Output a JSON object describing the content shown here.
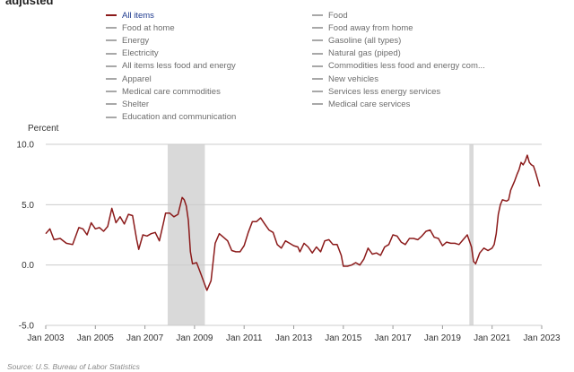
{
  "header": {
    "title": "adjusted"
  },
  "legend": {
    "items": [
      {
        "label": "All items",
        "active": true
      },
      {
        "label": "Food at home",
        "active": false
      },
      {
        "label": "Energy",
        "active": false
      },
      {
        "label": "Electricity",
        "active": false
      },
      {
        "label": "All items less food and energy",
        "active": false
      },
      {
        "label": "Apparel",
        "active": false
      },
      {
        "label": "Medical care commodities",
        "active": false
      },
      {
        "label": "Shelter",
        "active": false
      },
      {
        "label": "Education and communication",
        "active": false
      },
      {
        "label": "Food",
        "active": false
      },
      {
        "label": "Food away from home",
        "active": false
      },
      {
        "label": "Gasoline (all types)",
        "active": false
      },
      {
        "label": "Natural gas (piped)",
        "active": false
      },
      {
        "label": "Commodities less food and energy com...",
        "active": false
      },
      {
        "label": "New vehicles",
        "active": false
      },
      {
        "label": "Services less energy services",
        "active": false
      },
      {
        "label": "Medical care services",
        "active": false
      }
    ]
  },
  "source": "Source: U.S. Bureau of Labor Statistics",
  "colors": {
    "series": "#8b1a1a",
    "recession": "#d9d9d9",
    "grid": "#cccccc",
    "legend_active": "#1f3b8f",
    "legend_inactive": "#a8a8a8"
  },
  "chart_data": {
    "type": "line",
    "title": "",
    "xlabel": "",
    "ylabel": "Percent",
    "xlim": [
      "2003-01",
      "2023-01"
    ],
    "ylim": [
      -5.0,
      10.0
    ],
    "y_ticks": [
      "10.0",
      "5.0",
      "0.0",
      "-5.0"
    ],
    "x_ticks": [
      {
        "date": "2003-01",
        "label": "Jan 2003"
      },
      {
        "date": "2005-01",
        "label": "Jan 2005"
      },
      {
        "date": "2007-01",
        "label": "Jan 2007"
      },
      {
        "date": "2009-01",
        "label": "Jan 2009"
      },
      {
        "date": "2011-01",
        "label": "Jan 2011"
      },
      {
        "date": "2013-01",
        "label": "Jan 2013"
      },
      {
        "date": "2015-01",
        "label": "Jan 2015"
      },
      {
        "date": "2017-01",
        "label": "Jan 2017"
      },
      {
        "date": "2019-01",
        "label": "Jan 2019"
      },
      {
        "date": "2021-01",
        "label": "Jan 2021"
      },
      {
        "date": "2023-01",
        "label": "Jan 2023"
      }
    ],
    "grid": true,
    "shaded_periods": [
      {
        "start": "2007-12",
        "end": "2009-06"
      },
      {
        "start": "2020-02",
        "end": "2020-04"
      }
    ],
    "series": [
      {
        "name": "All items",
        "points": [
          [
            "2003-01",
            2.6
          ],
          [
            "2003-03",
            3.0
          ],
          [
            "2003-05",
            2.1
          ],
          [
            "2003-08",
            2.2
          ],
          [
            "2003-11",
            1.8
          ],
          [
            "2004-02",
            1.7
          ],
          [
            "2004-05",
            3.1
          ],
          [
            "2004-07",
            3.0
          ],
          [
            "2004-09",
            2.5
          ],
          [
            "2004-11",
            3.5
          ],
          [
            "2005-01",
            3.0
          ],
          [
            "2005-03",
            3.1
          ],
          [
            "2005-05",
            2.8
          ],
          [
            "2005-07",
            3.2
          ],
          [
            "2005-09",
            4.7
          ],
          [
            "2005-11",
            3.5
          ],
          [
            "2006-01",
            4.0
          ],
          [
            "2006-03",
            3.4
          ],
          [
            "2006-05",
            4.2
          ],
          [
            "2006-07",
            4.1
          ],
          [
            "2006-09",
            2.1
          ],
          [
            "2006-10",
            1.3
          ],
          [
            "2006-12",
            2.5
          ],
          [
            "2007-02",
            2.4
          ],
          [
            "2007-04",
            2.6
          ],
          [
            "2007-06",
            2.7
          ],
          [
            "2007-08",
            2.0
          ],
          [
            "2007-10",
            3.5
          ],
          [
            "2007-11",
            4.3
          ],
          [
            "2008-01",
            4.3
          ],
          [
            "2008-03",
            4.0
          ],
          [
            "2008-05",
            4.2
          ],
          [
            "2008-07",
            5.6
          ],
          [
            "2008-08",
            5.4
          ],
          [
            "2008-09",
            4.9
          ],
          [
            "2008-10",
            3.7
          ],
          [
            "2008-11",
            1.1
          ],
          [
            "2008-12",
            0.1
          ],
          [
            "2009-02",
            0.2
          ],
          [
            "2009-04",
            -0.7
          ],
          [
            "2009-07",
            -2.1
          ],
          [
            "2009-09",
            -1.3
          ],
          [
            "2009-11",
            1.8
          ],
          [
            "2010-01",
            2.6
          ],
          [
            "2010-03",
            2.3
          ],
          [
            "2010-05",
            2.0
          ],
          [
            "2010-07",
            1.2
          ],
          [
            "2010-09",
            1.1
          ],
          [
            "2010-11",
            1.1
          ],
          [
            "2011-01",
            1.6
          ],
          [
            "2011-03",
            2.7
          ],
          [
            "2011-05",
            3.6
          ],
          [
            "2011-07",
            3.6
          ],
          [
            "2011-09",
            3.9
          ],
          [
            "2011-11",
            3.4
          ],
          [
            "2012-01",
            2.9
          ],
          [
            "2012-03",
            2.7
          ],
          [
            "2012-05",
            1.7
          ],
          [
            "2012-07",
            1.4
          ],
          [
            "2012-09",
            2.0
          ],
          [
            "2012-11",
            1.8
          ],
          [
            "2013-01",
            1.6
          ],
          [
            "2013-03",
            1.5
          ],
          [
            "2013-04",
            1.1
          ],
          [
            "2013-06",
            1.8
          ],
          [
            "2013-08",
            1.5
          ],
          [
            "2013-10",
            1.0
          ],
          [
            "2013-12",
            1.5
          ],
          [
            "2014-02",
            1.1
          ],
          [
            "2014-04",
            2.0
          ],
          [
            "2014-06",
            2.1
          ],
          [
            "2014-08",
            1.7
          ],
          [
            "2014-10",
            1.7
          ],
          [
            "2014-12",
            0.8
          ],
          [
            "2015-01",
            -0.1
          ],
          [
            "2015-03",
            -0.1
          ],
          [
            "2015-05",
            0.0
          ],
          [
            "2015-07",
            0.2
          ],
          [
            "2015-09",
            0.0
          ],
          [
            "2015-11",
            0.5
          ],
          [
            "2016-01",
            1.4
          ],
          [
            "2016-03",
            0.9
          ],
          [
            "2016-05",
            1.0
          ],
          [
            "2016-07",
            0.8
          ],
          [
            "2016-09",
            1.5
          ],
          [
            "2016-11",
            1.7
          ],
          [
            "2017-01",
            2.5
          ],
          [
            "2017-03",
            2.4
          ],
          [
            "2017-05",
            1.9
          ],
          [
            "2017-07",
            1.7
          ],
          [
            "2017-09",
            2.2
          ],
          [
            "2017-11",
            2.2
          ],
          [
            "2018-01",
            2.1
          ],
          [
            "2018-03",
            2.4
          ],
          [
            "2018-05",
            2.8
          ],
          [
            "2018-07",
            2.9
          ],
          [
            "2018-09",
            2.3
          ],
          [
            "2018-11",
            2.2
          ],
          [
            "2019-01",
            1.6
          ],
          [
            "2019-03",
            1.9
          ],
          [
            "2019-05",
            1.8
          ],
          [
            "2019-07",
            1.8
          ],
          [
            "2019-09",
            1.7
          ],
          [
            "2019-11",
            2.1
          ],
          [
            "2020-01",
            2.5
          ],
          [
            "2020-03",
            1.5
          ],
          [
            "2020-04",
            0.3
          ],
          [
            "2020-05",
            0.1
          ],
          [
            "2020-07",
            1.0
          ],
          [
            "2020-09",
            1.4
          ],
          [
            "2020-11",
            1.2
          ],
          [
            "2021-01",
            1.4
          ],
          [
            "2021-02",
            1.7
          ],
          [
            "2021-03",
            2.6
          ],
          [
            "2021-04",
            4.2
          ],
          [
            "2021-05",
            5.0
          ],
          [
            "2021-06",
            5.4
          ],
          [
            "2021-08",
            5.3
          ],
          [
            "2021-09",
            5.4
          ],
          [
            "2021-10",
            6.2
          ],
          [
            "2021-12",
            7.0
          ],
          [
            "2022-01",
            7.5
          ],
          [
            "2022-02",
            7.9
          ],
          [
            "2022-03",
            8.5
          ],
          [
            "2022-04",
            8.3
          ],
          [
            "2022-05",
            8.6
          ],
          [
            "2022-06",
            9.1
          ],
          [
            "2022-07",
            8.5
          ],
          [
            "2022-08",
            8.3
          ],
          [
            "2022-09",
            8.2
          ],
          [
            "2022-10",
            7.7
          ],
          [
            "2022-11",
            7.1
          ],
          [
            "2022-12",
            6.5
          ]
        ]
      }
    ]
  }
}
